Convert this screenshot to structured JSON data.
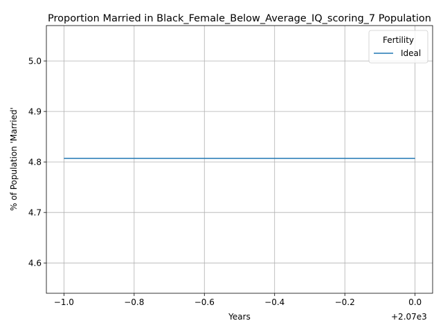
{
  "chart_data": {
    "type": "line",
    "title": "Proportion Married in Black_Female_Below_Average_IQ_scoring_7 Population",
    "xlabel": "Years",
    "ylabel": "% of Population 'Married'",
    "x_offset_label": "+2.07e3",
    "xlim": [
      -1.05,
      0.05
    ],
    "ylim": [
      4.54,
      5.07
    ],
    "x_ticks": [
      -1.0,
      -0.8,
      -0.6,
      -0.4,
      -0.2,
      0.0
    ],
    "x_tick_labels": [
      "−1.0",
      "−0.8",
      "−0.6",
      "−0.4",
      "−0.2",
      "0.0"
    ],
    "y_ticks": [
      4.6,
      4.7,
      4.8,
      4.9,
      5.0
    ],
    "y_tick_labels": [
      "4.6",
      "4.7",
      "4.8",
      "4.9",
      "5.0"
    ],
    "grid": true,
    "legend": {
      "title": "Fertility",
      "placement": "top-right"
    },
    "series": [
      {
        "name": "Ideal",
        "color": "#1f77b4",
        "x": [
          -1.0,
          0.0
        ],
        "y": [
          4.807,
          4.807
        ]
      }
    ]
  }
}
